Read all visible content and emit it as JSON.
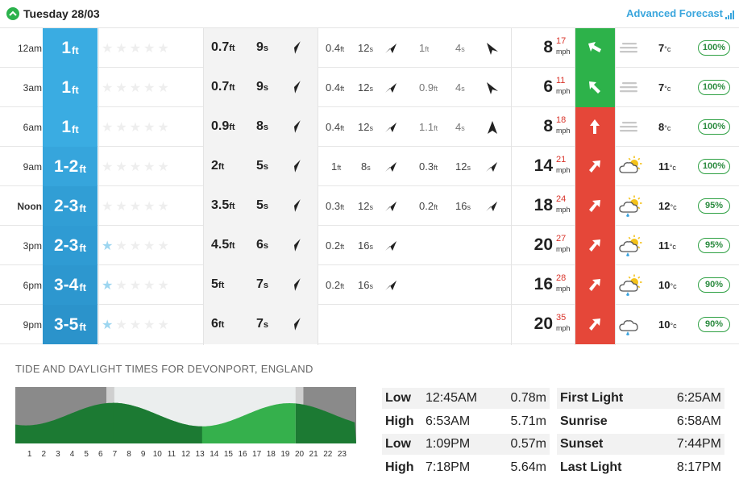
{
  "header": {
    "day": "Tuesday 28/03",
    "advanced": "Advanced Forecast"
  },
  "rows": [
    {
      "time": "12am",
      "bold_time": false,
      "surf": "1",
      "surf_unit": "ft",
      "stars_on": 0,
      "s1": {
        "h": "0.7",
        "hu": "ft",
        "p": "9",
        "pu": "s",
        "dir": "ne"
      },
      "s2": {
        "h": "0.4",
        "hu": "ft",
        "p": "12",
        "pu": "s",
        "dir": "ne2"
      },
      "s3": {
        "h": "1",
        "hu": "ft",
        "p": "4",
        "pu": "s",
        "dir": "se",
        "light": true
      },
      "wind": {
        "speed": "8",
        "gust": "17",
        "unit": "mph",
        "color": "green",
        "dir": "nw"
      },
      "weather": "fog-icon",
      "temp": "7",
      "tempu": "°c",
      "rating": "100%"
    },
    {
      "time": "3am",
      "bold_time": false,
      "surf": "1",
      "surf_unit": "ft",
      "stars_on": 0,
      "s1": {
        "h": "0.7",
        "hu": "ft",
        "p": "9",
        "pu": "s",
        "dir": "ne"
      },
      "s2": {
        "h": "0.4",
        "hu": "ft",
        "p": "12",
        "pu": "s",
        "dir": "ne2"
      },
      "s3": {
        "h": "0.9",
        "hu": "ft",
        "p": "4",
        "pu": "s",
        "dir": "se",
        "light": true
      },
      "wind": {
        "speed": "6",
        "gust": "11",
        "unit": "mph",
        "color": "green",
        "dir": "nw2"
      },
      "weather": "fog-icon",
      "temp": "7",
      "tempu": "°c",
      "rating": "100%"
    },
    {
      "time": "6am",
      "bold_time": false,
      "surf": "1",
      "surf_unit": "ft",
      "stars_on": 0,
      "s1": {
        "h": "0.9",
        "hu": "ft",
        "p": "8",
        "pu": "s",
        "dir": "ne"
      },
      "s2": {
        "h": "0.4",
        "hu": "ft",
        "p": "12",
        "pu": "s",
        "dir": "ne2"
      },
      "s3": {
        "h": "1.1",
        "hu": "ft",
        "p": "4",
        "pu": "s",
        "dir": "n",
        "light": true
      },
      "wind": {
        "speed": "8",
        "gust": "18",
        "unit": "mph",
        "color": "red",
        "dir": "n"
      },
      "weather": "fog-icon",
      "temp": "8",
      "tempu": "°c",
      "rating": "100%"
    },
    {
      "time": "9am",
      "bold_time": false,
      "surf": "1-2",
      "surf_unit": "ft",
      "stars_on": 0,
      "s1": {
        "h": "2",
        "hu": "ft",
        "p": "5",
        "pu": "s",
        "dir": "ne"
      },
      "s2": {
        "h": "1",
        "hu": "ft",
        "p": "8",
        "pu": "s",
        "dir": "ne2"
      },
      "s3": {
        "h": "0.3",
        "hu": "ft",
        "p": "12",
        "pu": "s",
        "dir": "ne2"
      },
      "wind": {
        "speed": "14",
        "gust": "21",
        "unit": "mph",
        "color": "red",
        "dir": "ne"
      },
      "weather": "partly-cloudy-icon",
      "temp": "11",
      "tempu": "°c",
      "rating": "100%"
    },
    {
      "time": "Noon",
      "bold_time": true,
      "surf": "2-3",
      "surf_unit": "ft",
      "stars_on": 0,
      "s1": {
        "h": "3.5",
        "hu": "ft",
        "p": "5",
        "pu": "s",
        "dir": "ne"
      },
      "s2": {
        "h": "0.3",
        "hu": "ft",
        "p": "12",
        "pu": "s",
        "dir": "ne2"
      },
      "s3": {
        "h": "0.2",
        "hu": "ft",
        "p": "16",
        "pu": "s",
        "dir": "ne2"
      },
      "wind": {
        "speed": "18",
        "gust": "24",
        "unit": "mph",
        "color": "red",
        "dir": "ne"
      },
      "weather": "sun-rain-icon",
      "temp": "12",
      "tempu": "°c",
      "rating": "95%"
    },
    {
      "time": "3pm",
      "bold_time": false,
      "surf": "2-3",
      "surf_unit": "ft",
      "stars_on": 1,
      "s1": {
        "h": "4.5",
        "hu": "ft",
        "p": "6",
        "pu": "s",
        "dir": "ne"
      },
      "s2": {
        "h": "0.2",
        "hu": "ft",
        "p": "16",
        "pu": "s",
        "dir": "ne2"
      },
      "s3": null,
      "wind": {
        "speed": "20",
        "gust": "27",
        "unit": "mph",
        "color": "red",
        "dir": "ne"
      },
      "weather": "sun-rain-icon",
      "temp": "11",
      "tempu": "°c",
      "rating": "95%"
    },
    {
      "time": "6pm",
      "bold_time": false,
      "surf": "3-4",
      "surf_unit": "ft",
      "stars_on": 1,
      "s1": {
        "h": "5",
        "hu": "ft",
        "p": "7",
        "pu": "s",
        "dir": "ne"
      },
      "s2": {
        "h": "0.2",
        "hu": "ft",
        "p": "16",
        "pu": "s",
        "dir": "ne2"
      },
      "s3": null,
      "wind": {
        "speed": "16",
        "gust": "28",
        "unit": "mph",
        "color": "red",
        "dir": "ne"
      },
      "weather": "sun-rain-icon",
      "temp": "10",
      "tempu": "°c",
      "rating": "90%"
    },
    {
      "time": "9pm",
      "bold_time": false,
      "surf": "3-5",
      "surf_unit": "ft",
      "stars_on": 1,
      "s1": {
        "h": "6",
        "hu": "ft",
        "p": "7",
        "pu": "s",
        "dir": "ne"
      },
      "s2": null,
      "s3": null,
      "wind": {
        "speed": "20",
        "gust": "35",
        "unit": "mph",
        "color": "red",
        "dir": "ne"
      },
      "weather": "rain-icon",
      "temp": "10",
      "tempu": "°c",
      "rating": "90%"
    }
  ],
  "tide": {
    "title": "TIDE AND DAYLIGHT TIMES FOR DEVONPORT, ENGLAND",
    "hours": [
      "1",
      "2",
      "3",
      "4",
      "5",
      "6",
      "7",
      "8",
      "9",
      "10",
      "11",
      "12",
      "13",
      "14",
      "15",
      "16",
      "17",
      "18",
      "19",
      "20",
      "21",
      "22",
      "23"
    ],
    "tides": [
      {
        "type": "Low",
        "time": "12:45AM",
        "height": "0.78m"
      },
      {
        "type": "High",
        "time": "6:53AM",
        "height": "5.71m"
      },
      {
        "type": "Low",
        "time": "1:09PM",
        "height": "0.57m"
      },
      {
        "type": "High",
        "time": "7:18PM",
        "height": "5.64m"
      }
    ],
    "daylight": [
      {
        "label": "First Light",
        "time": "6:25AM"
      },
      {
        "label": "Sunrise",
        "time": "6:58AM"
      },
      {
        "label": "Sunset",
        "time": "7:44PM"
      },
      {
        "label": "Last Light",
        "time": "8:17PM"
      }
    ]
  },
  "colors": {
    "surf_shades": [
      "#3aace2",
      "#3aace2",
      "#3aace2",
      "#36a5dc",
      "#319ed5",
      "#2f9bd3",
      "#2d97cf",
      "#2b93cb"
    ],
    "green": "#2db24a",
    "red": "#e54739",
    "accent": "#3aa6dd"
  }
}
